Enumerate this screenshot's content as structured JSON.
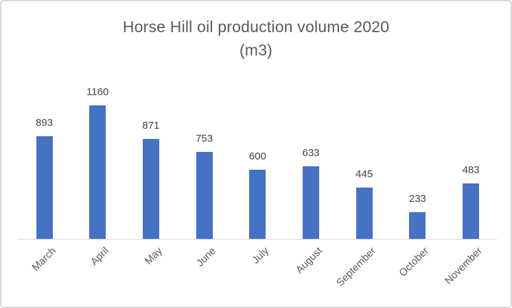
{
  "chart_data": {
    "type": "bar",
    "title": "Horse Hill oil production volume 2020 (m3)",
    "title_lines": [
      "Horse Hill oil production volume 2020",
      "(m3)"
    ],
    "categories": [
      "March",
      "April",
      "May",
      "June",
      "July",
      "August",
      "September",
      "October",
      "November"
    ],
    "values": [
      893,
      1160,
      871,
      753,
      600,
      633,
      445,
      233,
      483
    ],
    "xlabel": "",
    "ylabel": "",
    "ylim": [
      0,
      1200
    ],
    "grid": false,
    "legend_position": "none",
    "data_labels_shown": true,
    "x_labels_rotation_deg": 45,
    "bar_color": "#4472c4",
    "title_color": "#595959",
    "data_label_color": "#404040",
    "axis_label_color": "#595959",
    "axis_line_color": "#d9d9d9",
    "frame_border_color": "#d9d9d9",
    "background_color": "#ffffff"
  }
}
